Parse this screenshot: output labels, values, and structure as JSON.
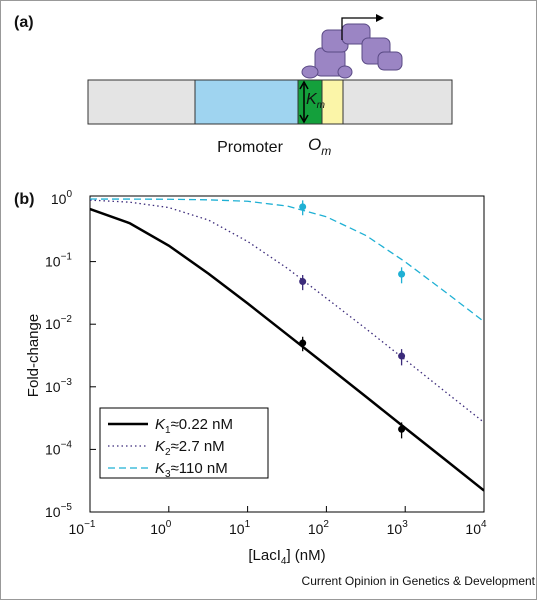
{
  "panel_a": {
    "label": "(a)",
    "promoter": "Promoter",
    "operator": {
      "symbol": "O",
      "sub": "m"
    },
    "affinity": {
      "symbol": "K",
      "sub": "m"
    }
  },
  "chart_data": {
    "type": "line",
    "panel_label": "(b)",
    "log": true,
    "xlabel": {
      "main": "[LacI",
      "sub": "4",
      "rest": "] (nM)"
    },
    "ylabel": "Fold-change",
    "xlim": [
      0.1,
      10000
    ],
    "ylim": [
      1e-05,
      1
    ],
    "xticks": [
      {
        "value": 0.1,
        "label": {
          "base": "10",
          "exp": "−1"
        }
      },
      {
        "value": 1,
        "label": {
          "base": "10",
          "exp": "0"
        }
      },
      {
        "value": 10,
        "label": {
          "base": "10",
          "exp": "1"
        }
      },
      {
        "value": 100,
        "label": {
          "base": "10",
          "exp": "2"
        }
      },
      {
        "value": 1000,
        "label": {
          "base": "10",
          "exp": "3"
        }
      },
      {
        "value": 10000,
        "label": {
          "base": "10",
          "exp": "4"
        }
      }
    ],
    "yticks": [
      {
        "value": 1e-05,
        "label": {
          "base": "10",
          "exp": "−5"
        }
      },
      {
        "value": 0.0001,
        "label": {
          "base": "10",
          "exp": "−4"
        }
      },
      {
        "value": 0.001,
        "label": {
          "base": "10",
          "exp": "−3"
        }
      },
      {
        "value": 0.01,
        "label": {
          "base": "10",
          "exp": "−2"
        }
      },
      {
        "value": 0.1,
        "label": {
          "base": "10",
          "exp": "−1"
        }
      },
      {
        "value": 1,
        "label": {
          "base": "10",
          "exp": "0"
        }
      }
    ],
    "x": [
      0.1,
      0.32,
      1,
      3.2,
      10,
      32,
      100,
      320,
      1000,
      3200,
      10000
    ],
    "legend": "lower left",
    "series": [
      {
        "label": {
          "symbol": "K",
          "sub": "1",
          "text": "≈0.22 nM"
        },
        "color": "#000000",
        "dash": "solid",
        "values": [
          0.69,
          0.41,
          0.18,
          0.064,
          0.0215,
          0.0068,
          0.0022,
          0.00069,
          0.00022,
          6.9e-05,
          2.2e-05
        ],
        "points": {
          "x": [
            50,
            900
          ],
          "values": [
            0.005,
            0.00021
          ],
          "errors": [
            0.0013,
            6e-05
          ]
        }
      },
      {
        "label": {
          "symbol": "K",
          "sub": "2",
          "text": "≈2.7 nM"
        },
        "color": "#3b2a7a",
        "dash": "dotted",
        "values": [
          0.96,
          0.89,
          0.73,
          0.46,
          0.21,
          0.078,
          0.026,
          0.0084,
          0.0027,
          0.00084,
          0.00027
        ],
        "points": {
          "x": [
            50,
            900
          ],
          "values": [
            0.048,
            0.0031
          ],
          "errors": [
            0.013,
            0.0009
          ]
        }
      },
      {
        "label": {
          "symbol": "K",
          "sub": "3",
          "text": "≈110 nM"
        },
        "color": "#1fb0d4",
        "dash": "dashed",
        "values": [
          0.999,
          0.997,
          0.99,
          0.97,
          0.92,
          0.77,
          0.52,
          0.26,
          0.099,
          0.033,
          0.011
        ],
        "points": {
          "x": [
            50,
            900
          ],
          "values": [
            0.75,
            0.063
          ],
          "errors": [
            0.2,
            0.018
          ]
        }
      }
    ]
  },
  "footer": "Current Opinion in Genetics & Development"
}
